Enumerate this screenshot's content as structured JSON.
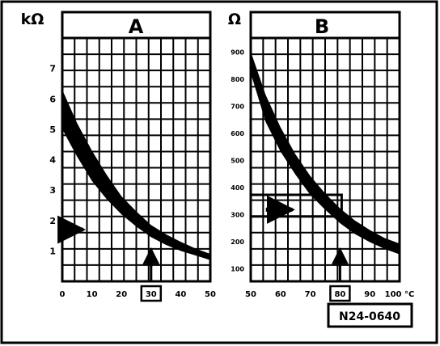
{
  "figure_id": "N24-0640",
  "chart_data": [
    {
      "type": "area",
      "title": "A",
      "ylabel": "kΩ",
      "xlabel": "",
      "xlim": [
        0,
        50
      ],
      "ylim": [
        0,
        8
      ],
      "x_ticks": [
        0,
        10,
        20,
        30,
        40,
        50
      ],
      "x_tick_labels": [
        "0",
        "10",
        "20",
        "30",
        "40",
        "50"
      ],
      "y_ticks": [
        1,
        2,
        3,
        4,
        5,
        6,
        7
      ],
      "y_tick_labels": [
        "1",
        "2",
        "3",
        "4",
        "5",
        "6",
        "7"
      ],
      "highlighted_x_label": "30",
      "marker_x": 30,
      "grid": true,
      "band": {
        "x": [
          0,
          5,
          10,
          15,
          20,
          25,
          30,
          35,
          40,
          45,
          50
        ],
        "upper": [
          6.3,
          5.2,
          4.3,
          3.5,
          2.8,
          2.3,
          1.85,
          1.55,
          1.3,
          1.08,
          0.9
        ],
        "lower": [
          5.0,
          4.1,
          3.3,
          2.7,
          2.2,
          1.8,
          1.45,
          1.2,
          1.0,
          0.85,
          0.7
        ]
      },
      "pointer_y": 1.7,
      "pointer_x_range": [
        0,
        7
      ]
    },
    {
      "type": "area",
      "title": "B",
      "ylabel": "Ω",
      "xlabel": "",
      "xlim": [
        50,
        100
      ],
      "ylim": [
        50,
        950
      ],
      "x_ticks": [
        50,
        60,
        70,
        80,
        90,
        100
      ],
      "x_tick_labels": [
        "50",
        "60",
        "70",
        "80",
        "90",
        "100 °C"
      ],
      "y_ticks": [
        100,
        200,
        300,
        400,
        500,
        600,
        700,
        800,
        900
      ],
      "y_tick_labels": [
        "100",
        "200",
        "300",
        "400",
        "500",
        "600",
        "700",
        "800",
        "900"
      ],
      "highlighted_x_label": "80",
      "marker_x": 80,
      "grid": true,
      "band": {
        "x": [
          50,
          55,
          60,
          65,
          70,
          75,
          80,
          85,
          90,
          95,
          100
        ],
        "upper": [
          900,
          740,
          620,
          520,
          440,
          375,
          320,
          275,
          240,
          210,
          190
        ],
        "lower": [
          820,
          640,
          530,
          445,
          370,
          315,
          265,
          225,
          195,
          170,
          150
        ]
      },
      "pointer_y": 315,
      "pointer_x_range": [
        54,
        64
      ],
      "bracket_y": [
        290,
        370
      ]
    }
  ]
}
